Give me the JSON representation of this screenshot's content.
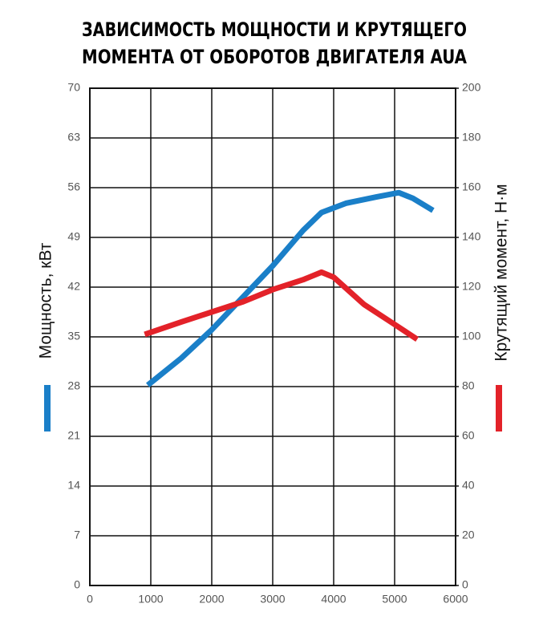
{
  "chart_data": {
    "type": "line",
    "title": [
      "ЗАВИСИМОСТЬ МОЩНОСТИ И КРУТЯЩЕГО",
      "МОМЕНТА ОТ ОБОРОТОВ ДВИГАТЕЛЯ AUA"
    ],
    "ylabel": "Мощность, кВт",
    "y2label": "Крутящий момент, Н·м",
    "xlim": [
      0,
      6000
    ],
    "xticks": [
      0,
      1000,
      2000,
      3000,
      4000,
      5000,
      6000
    ],
    "ylim": [
      0,
      70
    ],
    "yticks": [
      0,
      7,
      14,
      21,
      28,
      35,
      42,
      49,
      56,
      63,
      70
    ],
    "y2lim": [
      0,
      200
    ],
    "y2ticks": [
      0,
      20,
      40,
      60,
      80,
      100,
      120,
      140,
      160,
      180,
      200
    ],
    "grid": true,
    "series": [
      {
        "color": "#1a7fc8",
        "axis": "y",
        "x": [
          950,
          1500,
          2000,
          2500,
          3000,
          3500,
          3800,
          4200,
          4700,
          5070,
          5300,
          5630
        ],
        "values": [
          28.2,
          32,
          36,
          40.5,
          45,
          50,
          52.5,
          53.8,
          54.7,
          55.3,
          54.5,
          52.8
        ]
      },
      {
        "color": "#e32229",
        "axis": "y2",
        "x": [
          900,
          1500,
          2000,
          2500,
          3000,
          3500,
          3800,
          4000,
          4500,
          5000,
          5370
        ],
        "values": [
          101,
          106,
          110,
          114,
          119,
          123,
          126,
          124,
          113,
          105,
          99
        ]
      }
    ]
  }
}
